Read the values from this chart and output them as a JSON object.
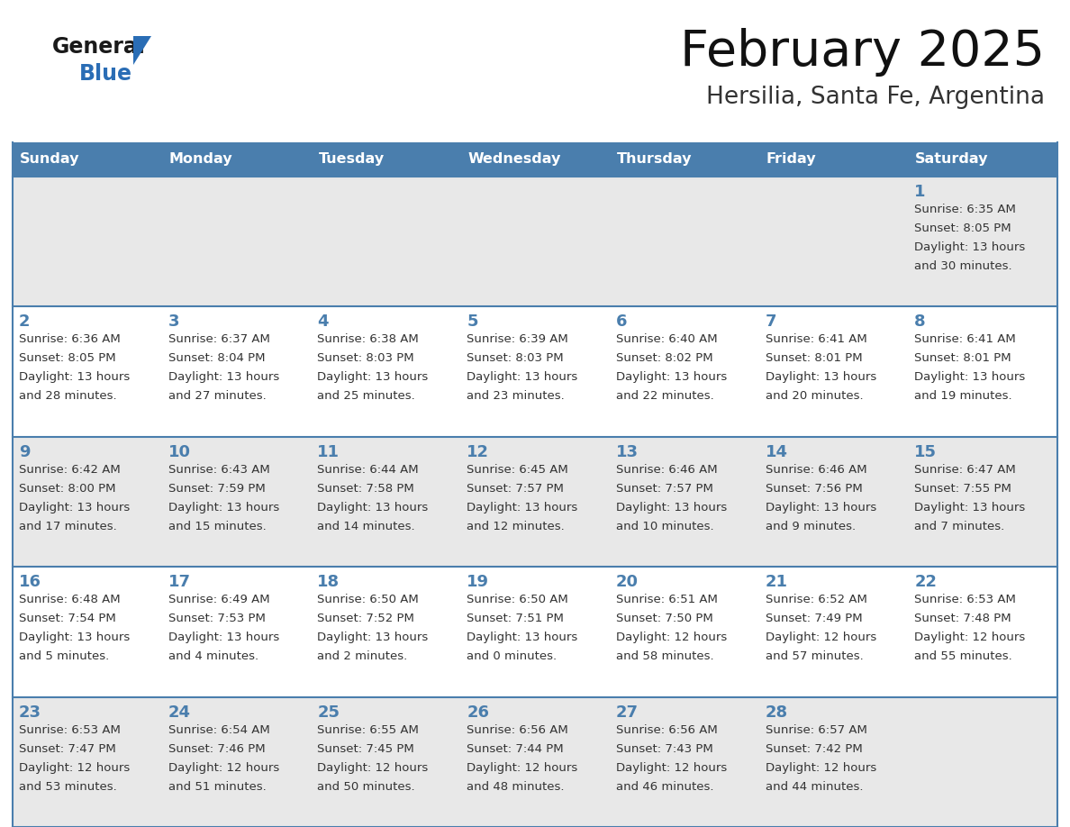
{
  "title": "February 2025",
  "subtitle": "Hersilia, Santa Fe, Argentina",
  "header_color": "#4a7ead",
  "header_text_color": "#ffffff",
  "day_names": [
    "Sunday",
    "Monday",
    "Tuesday",
    "Wednesday",
    "Thursday",
    "Friday",
    "Saturday"
  ],
  "bg_color": "#ffffff",
  "cell_bg_even": "#e8e8e8",
  "cell_bg_odd": "#ffffff",
  "border_color": "#4a7ead",
  "day_num_color": "#4a7ead",
  "text_color": "#333333",
  "logo_general_color": "#1a1a1a",
  "logo_blue_color": "#2a6db5",
  "calendar": [
    [
      null,
      null,
      null,
      null,
      null,
      null,
      {
        "day": 1,
        "sunrise": "6:35 AM",
        "sunset": "8:05 PM",
        "daylight": "13 hours\nand 30 minutes."
      }
    ],
    [
      {
        "day": 2,
        "sunrise": "6:36 AM",
        "sunset": "8:05 PM",
        "daylight": "13 hours\nand 28 minutes."
      },
      {
        "day": 3,
        "sunrise": "6:37 AM",
        "sunset": "8:04 PM",
        "daylight": "13 hours\nand 27 minutes."
      },
      {
        "day": 4,
        "sunrise": "6:38 AM",
        "sunset": "8:03 PM",
        "daylight": "13 hours\nand 25 minutes."
      },
      {
        "day": 5,
        "sunrise": "6:39 AM",
        "sunset": "8:03 PM",
        "daylight": "13 hours\nand 23 minutes."
      },
      {
        "day": 6,
        "sunrise": "6:40 AM",
        "sunset": "8:02 PM",
        "daylight": "13 hours\nand 22 minutes."
      },
      {
        "day": 7,
        "sunrise": "6:41 AM",
        "sunset": "8:01 PM",
        "daylight": "13 hours\nand 20 minutes."
      },
      {
        "day": 8,
        "sunrise": "6:41 AM",
        "sunset": "8:01 PM",
        "daylight": "13 hours\nand 19 minutes."
      }
    ],
    [
      {
        "day": 9,
        "sunrise": "6:42 AM",
        "sunset": "8:00 PM",
        "daylight": "13 hours\nand 17 minutes."
      },
      {
        "day": 10,
        "sunrise": "6:43 AM",
        "sunset": "7:59 PM",
        "daylight": "13 hours\nand 15 minutes."
      },
      {
        "day": 11,
        "sunrise": "6:44 AM",
        "sunset": "7:58 PM",
        "daylight": "13 hours\nand 14 minutes."
      },
      {
        "day": 12,
        "sunrise": "6:45 AM",
        "sunset": "7:57 PM",
        "daylight": "13 hours\nand 12 minutes."
      },
      {
        "day": 13,
        "sunrise": "6:46 AM",
        "sunset": "7:57 PM",
        "daylight": "13 hours\nand 10 minutes."
      },
      {
        "day": 14,
        "sunrise": "6:46 AM",
        "sunset": "7:56 PM",
        "daylight": "13 hours\nand 9 minutes."
      },
      {
        "day": 15,
        "sunrise": "6:47 AM",
        "sunset": "7:55 PM",
        "daylight": "13 hours\nand 7 minutes."
      }
    ],
    [
      {
        "day": 16,
        "sunrise": "6:48 AM",
        "sunset": "7:54 PM",
        "daylight": "13 hours\nand 5 minutes."
      },
      {
        "day": 17,
        "sunrise": "6:49 AM",
        "sunset": "7:53 PM",
        "daylight": "13 hours\nand 4 minutes."
      },
      {
        "day": 18,
        "sunrise": "6:50 AM",
        "sunset": "7:52 PM",
        "daylight": "13 hours\nand 2 minutes."
      },
      {
        "day": 19,
        "sunrise": "6:50 AM",
        "sunset": "7:51 PM",
        "daylight": "13 hours\nand 0 minutes."
      },
      {
        "day": 20,
        "sunrise": "6:51 AM",
        "sunset": "7:50 PM",
        "daylight": "12 hours\nand 58 minutes."
      },
      {
        "day": 21,
        "sunrise": "6:52 AM",
        "sunset": "7:49 PM",
        "daylight": "12 hours\nand 57 minutes."
      },
      {
        "day": 22,
        "sunrise": "6:53 AM",
        "sunset": "7:48 PM",
        "daylight": "12 hours\nand 55 minutes."
      }
    ],
    [
      {
        "day": 23,
        "sunrise": "6:53 AM",
        "sunset": "7:47 PM",
        "daylight": "12 hours\nand 53 minutes."
      },
      {
        "day": 24,
        "sunrise": "6:54 AM",
        "sunset": "7:46 PM",
        "daylight": "12 hours\nand 51 minutes."
      },
      {
        "day": 25,
        "sunrise": "6:55 AM",
        "sunset": "7:45 PM",
        "daylight": "12 hours\nand 50 minutes."
      },
      {
        "day": 26,
        "sunrise": "6:56 AM",
        "sunset": "7:44 PM",
        "daylight": "12 hours\nand 48 minutes."
      },
      {
        "day": 27,
        "sunrise": "6:56 AM",
        "sunset": "7:43 PM",
        "daylight": "12 hours\nand 46 minutes."
      },
      {
        "day": 28,
        "sunrise": "6:57 AM",
        "sunset": "7:42 PM",
        "daylight": "12 hours\nand 44 minutes."
      },
      null
    ]
  ],
  "figsize": [
    11.88,
    9.18
  ],
  "dpi": 100
}
